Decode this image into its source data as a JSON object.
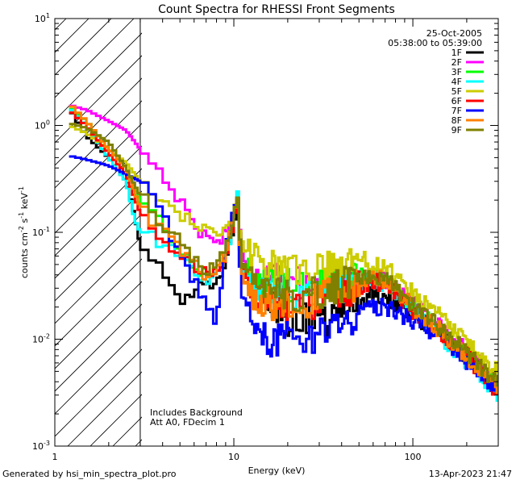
{
  "chart_data": {
    "type": "line",
    "title": "Count Spectra for RHESSI Front Segments",
    "xlabel": "Energy (keV)",
    "ylabel": "counts cm^-2 s^-1 keV^-1",
    "ylabel_parts": {
      "base": "counts cm",
      "exp1": "-2",
      "mid": " s",
      "exp2": "-1",
      "end": " keV",
      "exp3": "-1"
    },
    "xscale": "log",
    "yscale": "log",
    "xlim": [
      1,
      300
    ],
    "ylim": [
      0.001,
      10
    ],
    "x_ticks": [
      {
        "value": 1,
        "label": "1"
      },
      {
        "value": 10,
        "label": "10"
      },
      {
        "value": 100,
        "label": "100"
      }
    ],
    "y_ticks": [
      {
        "value": 0.001,
        "base": "10",
        "exp": "-3"
      },
      {
        "value": 0.01,
        "base": "10",
        "exp": "-2"
      },
      {
        "value": 0.1,
        "base": "10",
        "exp": "-1"
      },
      {
        "value": 1,
        "base": "10",
        "exp": "0"
      },
      {
        "value": 10,
        "base": "10",
        "exp": "1"
      }
    ],
    "excluded_region": [
      1,
      3
    ],
    "date": "25-Oct-2005",
    "time_range": "05:38:00 to 05:39:00",
    "notes": [
      "Includes Background",
      "Att A0, FDecim 1"
    ],
    "series": [
      {
        "name": "1F",
        "color": "#000000",
        "anchors": [
          [
            1.2,
            1.45
          ],
          [
            1.5,
            0.8
          ],
          [
            2,
            0.5
          ],
          [
            2.5,
            0.3
          ],
          [
            2.8,
            0.14
          ],
          [
            3,
            0.075
          ],
          [
            4,
            0.05
          ],
          [
            5,
            0.02
          ],
          [
            6,
            0.03
          ],
          [
            7,
            0.03
          ],
          [
            8,
            0.035
          ],
          [
            9,
            0.05
          ],
          [
            10,
            0.1
          ],
          [
            10.5,
            0.2
          ],
          [
            11,
            0.06
          ],
          [
            13,
            0.035
          ],
          [
            16,
            0.02
          ],
          [
            20,
            0.015
          ],
          [
            25,
            0.015
          ],
          [
            30,
            0.014
          ],
          [
            40,
            0.018
          ],
          [
            50,
            0.022
          ],
          [
            60,
            0.027
          ],
          [
            70,
            0.025
          ],
          [
            80,
            0.022
          ],
          [
            100,
            0.017
          ],
          [
            150,
            0.01
          ],
          [
            200,
            0.007
          ],
          [
            300,
            0.0035
          ]
        ]
      },
      {
        "name": "2F",
        "color": "#ff00ff",
        "anchors": [
          [
            1.2,
            1.55
          ],
          [
            1.5,
            1.4
          ],
          [
            2,
            1.1
          ],
          [
            2.5,
            0.9
          ],
          [
            3,
            0.6
          ],
          [
            4,
            0.35
          ],
          [
            5,
            0.2
          ],
          [
            6,
            0.12
          ],
          [
            7,
            0.09
          ],
          [
            8,
            0.08
          ],
          [
            9,
            0.1
          ],
          [
            10,
            0.15
          ],
          [
            10.5,
            0.2
          ],
          [
            11,
            0.07
          ],
          [
            13,
            0.04
          ],
          [
            16,
            0.035
          ],
          [
            20,
            0.035
          ],
          [
            25,
            0.033
          ],
          [
            30,
            0.035
          ],
          [
            40,
            0.033
          ],
          [
            50,
            0.035
          ],
          [
            60,
            0.037
          ],
          [
            70,
            0.035
          ],
          [
            80,
            0.03
          ],
          [
            100,
            0.022
          ],
          [
            150,
            0.012
          ],
          [
            200,
            0.008
          ],
          [
            300,
            0.004
          ]
        ]
      },
      {
        "name": "3F",
        "color": "#00ff00",
        "anchors": [
          [
            1.2,
            1.5
          ],
          [
            1.5,
            1.1
          ],
          [
            2,
            0.6
          ],
          [
            2.5,
            0.4
          ],
          [
            3,
            0.2
          ],
          [
            4,
            0.12
          ],
          [
            5,
            0.07
          ],
          [
            6,
            0.05
          ],
          [
            7,
            0.04
          ],
          [
            8,
            0.045
          ],
          [
            9,
            0.07
          ],
          [
            10,
            0.13
          ],
          [
            10.5,
            0.22
          ],
          [
            11,
            0.05
          ],
          [
            13,
            0.035
          ],
          [
            16,
            0.032
          ],
          [
            20,
            0.032
          ],
          [
            25,
            0.03
          ],
          [
            30,
            0.035
          ],
          [
            40,
            0.032
          ],
          [
            50,
            0.038
          ],
          [
            60,
            0.04
          ],
          [
            70,
            0.036
          ],
          [
            80,
            0.03
          ],
          [
            100,
            0.02
          ],
          [
            150,
            0.011
          ],
          [
            200,
            0.007
          ],
          [
            300,
            0.0035
          ]
        ]
      },
      {
        "name": "4F",
        "color": "#00ffff",
        "anchors": [
          [
            1.2,
            1.5
          ],
          [
            1.5,
            1.0
          ],
          [
            2,
            0.5
          ],
          [
            2.5,
            0.3
          ],
          [
            2.8,
            0.13
          ],
          [
            3,
            0.1
          ],
          [
            4,
            0.08
          ],
          [
            5,
            0.06
          ],
          [
            6,
            0.045
          ],
          [
            7,
            0.035
          ],
          [
            8,
            0.04
          ],
          [
            9,
            0.06
          ],
          [
            10,
            0.12
          ],
          [
            10.5,
            0.22
          ],
          [
            11,
            0.05
          ],
          [
            13,
            0.03
          ],
          [
            16,
            0.028
          ],
          [
            20,
            0.025
          ],
          [
            25,
            0.025
          ],
          [
            30,
            0.028
          ],
          [
            40,
            0.03
          ],
          [
            50,
            0.033
          ],
          [
            60,
            0.036
          ],
          [
            70,
            0.033
          ],
          [
            80,
            0.028
          ],
          [
            100,
            0.019
          ],
          [
            150,
            0.01
          ],
          [
            200,
            0.006
          ],
          [
            300,
            0.003
          ]
        ]
      },
      {
        "name": "5F",
        "color": "#cccc00",
        "anchors": [
          [
            1.2,
            1.0
          ],
          [
            1.5,
            0.85
          ],
          [
            2,
            0.6
          ],
          [
            2.5,
            0.45
          ],
          [
            3,
            0.3
          ],
          [
            4,
            0.2
          ],
          [
            5,
            0.15
          ],
          [
            6,
            0.13
          ],
          [
            7,
            0.1
          ],
          [
            8,
            0.09
          ],
          [
            9,
            0.1
          ],
          [
            10,
            0.15
          ],
          [
            10.5,
            0.2
          ],
          [
            11,
            0.08
          ],
          [
            13,
            0.055
          ],
          [
            16,
            0.048
          ],
          [
            20,
            0.042
          ],
          [
            25,
            0.045
          ],
          [
            30,
            0.045
          ],
          [
            40,
            0.05
          ],
          [
            50,
            0.058
          ],
          [
            60,
            0.05
          ],
          [
            70,
            0.045
          ],
          [
            80,
            0.04
          ],
          [
            100,
            0.028
          ],
          [
            150,
            0.015
          ],
          [
            200,
            0.009
          ],
          [
            300,
            0.005
          ]
        ]
      },
      {
        "name": "6F",
        "color": "#ff0000",
        "anchors": [
          [
            1.2,
            1.4
          ],
          [
            1.5,
            1.0
          ],
          [
            2,
            0.55
          ],
          [
            2.5,
            0.35
          ],
          [
            3,
            0.15
          ],
          [
            4,
            0.08
          ],
          [
            5,
            0.06
          ],
          [
            6,
            0.05
          ],
          [
            7,
            0.04
          ],
          [
            8,
            0.04
          ],
          [
            9,
            0.06
          ],
          [
            10,
            0.12
          ],
          [
            10.5,
            0.18
          ],
          [
            11,
            0.05
          ],
          [
            13,
            0.025
          ],
          [
            16,
            0.022
          ],
          [
            20,
            0.02
          ],
          [
            25,
            0.02
          ],
          [
            30,
            0.022
          ],
          [
            40,
            0.025
          ],
          [
            50,
            0.03
          ],
          [
            60,
            0.035
          ],
          [
            70,
            0.032
          ],
          [
            80,
            0.027
          ],
          [
            100,
            0.018
          ],
          [
            150,
            0.01
          ],
          [
            200,
            0.007
          ],
          [
            300,
            0.003
          ]
        ]
      },
      {
        "name": "7F",
        "color": "#0000ff",
        "anchors": [
          [
            1.2,
            0.52
          ],
          [
            1.5,
            0.48
          ],
          [
            2,
            0.42
          ],
          [
            2.5,
            0.35
          ],
          [
            3,
            0.3
          ],
          [
            4,
            0.15
          ],
          [
            5,
            0.06
          ],
          [
            6,
            0.035
          ],
          [
            7,
            0.02
          ],
          [
            8,
            0.015
          ],
          [
            9,
            0.07
          ],
          [
            10,
            0.15
          ],
          [
            10.5,
            0.18
          ],
          [
            11,
            0.03
          ],
          [
            13,
            0.012
          ],
          [
            16,
            0.01
          ],
          [
            20,
            0.01
          ],
          [
            25,
            0.01
          ],
          [
            30,
            0.011
          ],
          [
            40,
            0.014
          ],
          [
            50,
            0.017
          ],
          [
            60,
            0.02
          ],
          [
            70,
            0.02
          ],
          [
            80,
            0.018
          ],
          [
            100,
            0.015
          ],
          [
            150,
            0.01
          ],
          [
            200,
            0.006
          ],
          [
            300,
            0.003
          ]
        ]
      },
      {
        "name": "8F",
        "color": "#ff8000",
        "anchors": [
          [
            1.2,
            1.6
          ],
          [
            1.5,
            1.1
          ],
          [
            2,
            0.6
          ],
          [
            2.5,
            0.4
          ],
          [
            3,
            0.17
          ],
          [
            4,
            0.1
          ],
          [
            5,
            0.07
          ],
          [
            6,
            0.05
          ],
          [
            7,
            0.04
          ],
          [
            8,
            0.045
          ],
          [
            9,
            0.065
          ],
          [
            10,
            0.13
          ],
          [
            10.5,
            0.2
          ],
          [
            11,
            0.04
          ],
          [
            13,
            0.025
          ],
          [
            16,
            0.022
          ],
          [
            20,
            0.02
          ],
          [
            25,
            0.022
          ],
          [
            30,
            0.025
          ],
          [
            40,
            0.028
          ],
          [
            50,
            0.034
          ],
          [
            60,
            0.04
          ],
          [
            70,
            0.036
          ],
          [
            80,
            0.03
          ],
          [
            100,
            0.02
          ],
          [
            150,
            0.011
          ],
          [
            200,
            0.007
          ],
          [
            300,
            0.0035
          ]
        ]
      },
      {
        "name": "9F",
        "color": "#808000",
        "anchors": [
          [
            1.2,
            1.05
          ],
          [
            1.5,
            0.95
          ],
          [
            2,
            0.7
          ],
          [
            2.5,
            0.4
          ],
          [
            3,
            0.22
          ],
          [
            4,
            0.12
          ],
          [
            5,
            0.08
          ],
          [
            6,
            0.055
          ],
          [
            7,
            0.045
          ],
          [
            8,
            0.05
          ],
          [
            9,
            0.07
          ],
          [
            10,
            0.13
          ],
          [
            10.5,
            0.2
          ],
          [
            11,
            0.05
          ],
          [
            13,
            0.03
          ],
          [
            16,
            0.026
          ],
          [
            20,
            0.025
          ],
          [
            25,
            0.027
          ],
          [
            30,
            0.028
          ],
          [
            40,
            0.032
          ],
          [
            50,
            0.036
          ],
          [
            60,
            0.04
          ],
          [
            70,
            0.037
          ],
          [
            80,
            0.031
          ],
          [
            100,
            0.021
          ],
          [
            150,
            0.012
          ],
          [
            200,
            0.0075
          ],
          [
            300,
            0.0037
          ]
        ]
      }
    ]
  },
  "footer": {
    "left": "Generated by hsi_min_spectra_plot.pro",
    "right": "13-Apr-2023 21:47"
  }
}
